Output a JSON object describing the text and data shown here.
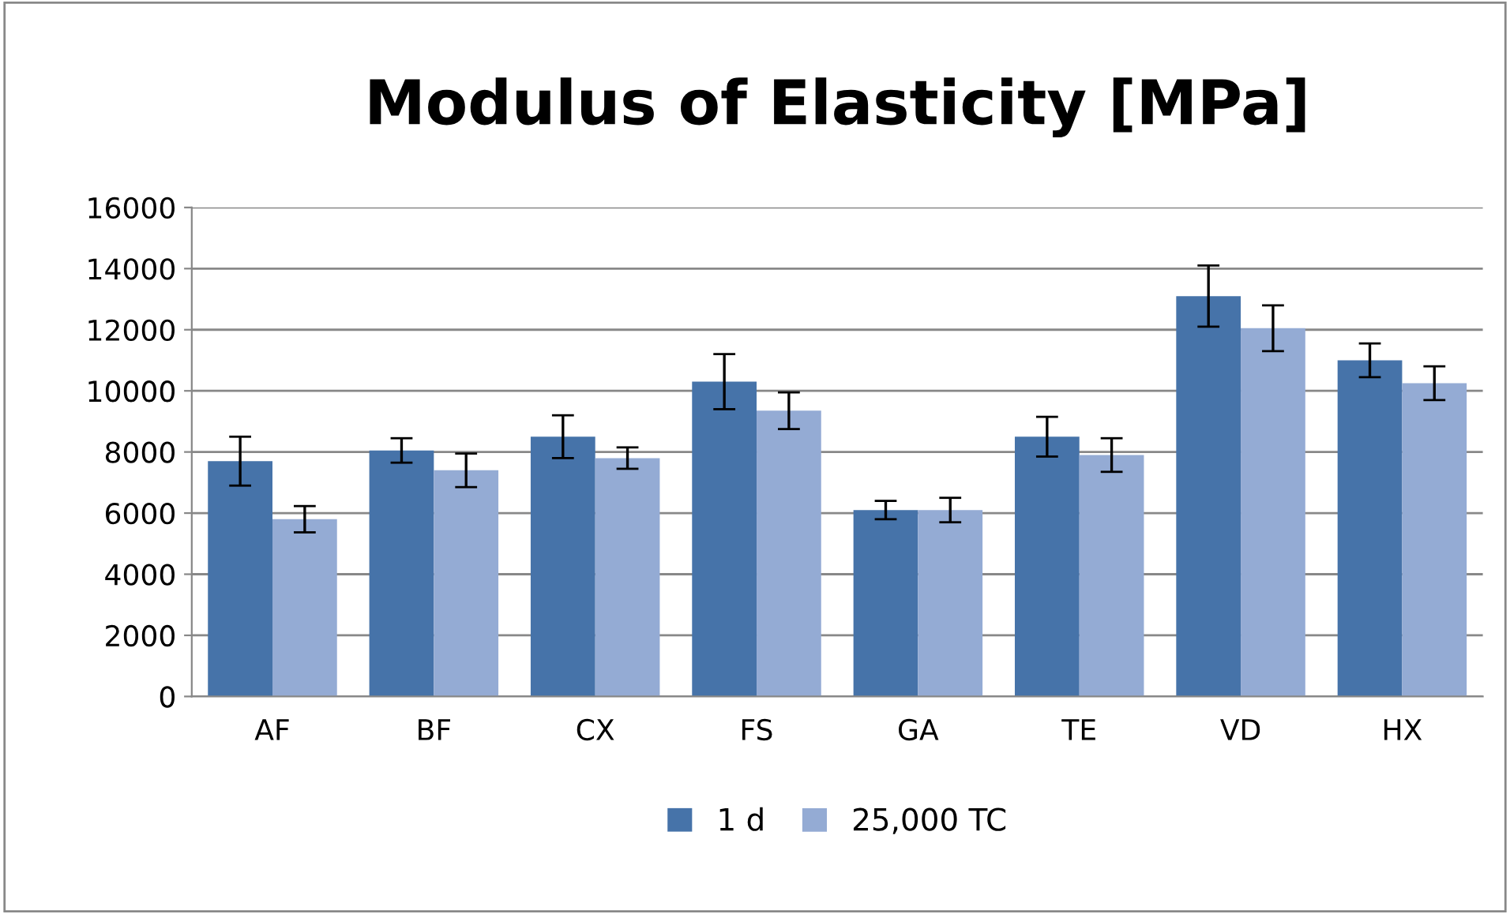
{
  "chart_data": {
    "type": "bar",
    "title": "Modulus of Elasticity [MPa]",
    "categories": [
      "AF",
      "BF",
      "CX",
      "FS",
      "GA",
      "TE",
      "VD",
      "HX"
    ],
    "series": [
      {
        "name": "1 d",
        "color": "#4673a9",
        "values": [
          7700,
          8050,
          8500,
          10300,
          6100,
          8500,
          13100,
          11000
        ],
        "errors": [
          800,
          400,
          700,
          900,
          300,
          650,
          1000,
          550
        ]
      },
      {
        "name": "25,000 TC",
        "color": "#94abd4",
        "values": [
          5800,
          7400,
          7800,
          9350,
          6100,
          7900,
          12050,
          10250
        ],
        "errors": [
          430,
          550,
          350,
          600,
          400,
          550,
          750,
          550
        ]
      }
    ],
    "ylim": [
      0,
      16000
    ],
    "yticks": [
      0,
      2000,
      4000,
      6000,
      8000,
      10000,
      12000,
      14000,
      16000
    ],
    "grid": "y",
    "legend": "bottom"
  }
}
